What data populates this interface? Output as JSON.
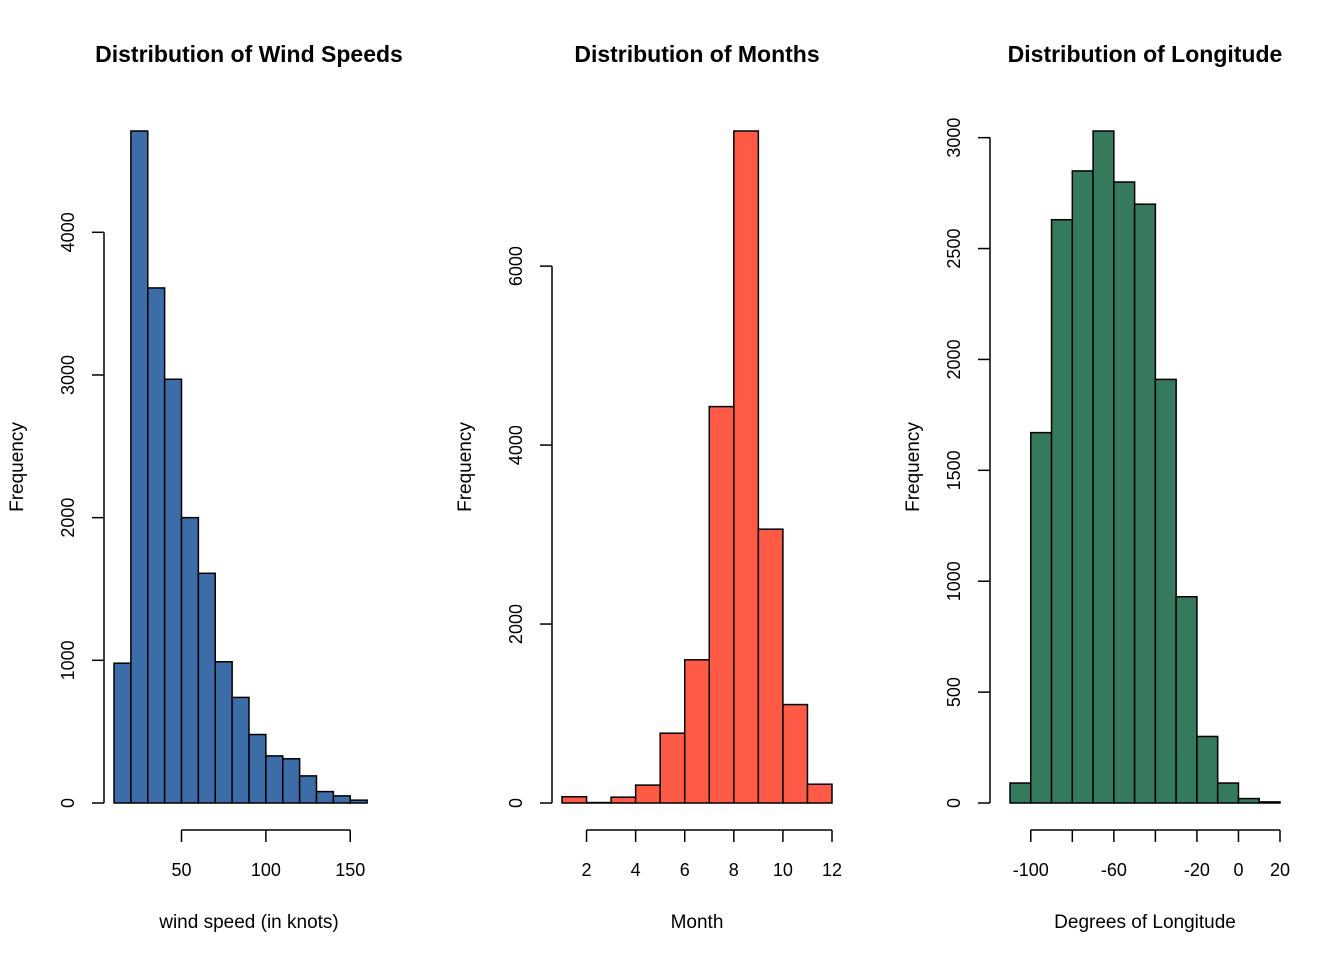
{
  "chart_data": [
    {
      "type": "bar",
      "title": "Distribution of Wind Speeds",
      "xlabel": "wind speed (in knots)",
      "ylabel": "Frequency",
      "color": "#3D6DA8",
      "bin_edges": [
        10,
        20,
        30,
        40,
        50,
        60,
        70,
        80,
        90,
        100,
        110,
        120,
        130,
        140,
        150,
        160,
        170
      ],
      "values": [
        980,
        4710,
        3610,
        2970,
        2000,
        1610,
        990,
        740,
        480,
        330,
        310,
        190,
        80,
        50,
        20,
        0
      ],
      "xlim": [
        10,
        170
      ],
      "ylim": [
        0,
        4710
      ],
      "xticks": [
        50,
        100,
        150
      ],
      "yticks": [
        0,
        1000,
        2000,
        3000,
        4000
      ],
      "xtick_labels": [
        "50",
        "100",
        "150"
      ],
      "ytick_labels": [
        "0",
        "1000",
        "2000",
        "3000",
        "4000"
      ]
    },
    {
      "type": "bar",
      "title": "Distribution of Months",
      "xlabel": "Month",
      "ylabel": "Frequency",
      "color": "#FF5A45",
      "bin_edges": [
        1,
        2,
        3,
        4,
        5,
        6,
        7,
        8,
        9,
        10,
        11,
        12
      ],
      "values": [
        70,
        5,
        65,
        200,
        780,
        1600,
        4430,
        7510,
        3060,
        1100,
        210
      ],
      "xlim": [
        1,
        12
      ],
      "ylim": [
        0,
        7510
      ],
      "xticks": [
        2,
        4,
        6,
        8,
        10,
        12
      ],
      "yticks": [
        0,
        2000,
        4000,
        6000
      ],
      "xtick_labels": [
        "2",
        "4",
        "6",
        "8",
        "10",
        "12"
      ],
      "ytick_labels": [
        "0",
        "2000",
        "4000",
        "6000"
      ]
    },
    {
      "type": "bar",
      "title": "Distribution of Longitude",
      "xlabel": "Degrees of Longitude",
      "ylabel": "Frequency",
      "color": "#367A5E",
      "bin_edges": [
        -110,
        -100,
        -90,
        -80,
        -70,
        -60,
        -50,
        -40,
        -30,
        -20,
        -10,
        0,
        10,
        20
      ],
      "values": [
        90,
        1670,
        2630,
        2850,
        3030,
        2800,
        2700,
        1910,
        930,
        300,
        90,
        20,
        5
      ],
      "xlim": [
        -110,
        20
      ],
      "ylim": [
        0,
        3030
      ],
      "xticks": [
        -100,
        -80,
        -60,
        -40,
        -20,
        0,
        20
      ],
      "yticks": [
        0,
        500,
        1000,
        1500,
        2000,
        2500,
        3000
      ],
      "xtick_labels": [
        "-100",
        "",
        "-60",
        "",
        "-20",
        "0",
        "20"
      ],
      "ytick_labels": [
        "0",
        "500",
        "1000",
        "1500",
        "2000",
        "2500",
        "3000"
      ]
    }
  ]
}
